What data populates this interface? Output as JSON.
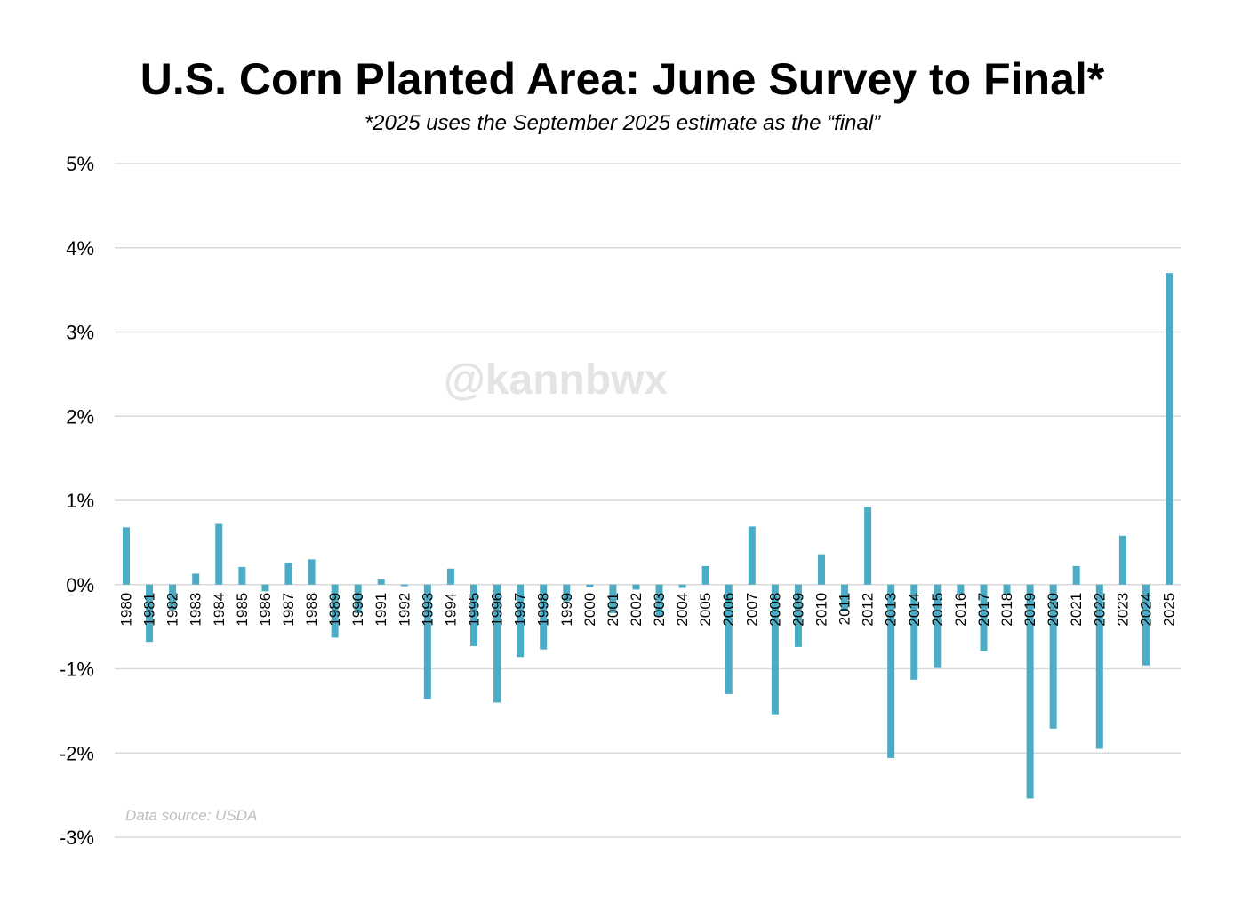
{
  "chart_data": {
    "type": "bar",
    "title": "U.S. Corn Planted Area: June Survey to Final*",
    "subtitle": "*2025 uses the September 2025 estimate as the “final”",
    "watermark": "@kannbwx",
    "source": "Data source: USDA",
    "xlabel": "",
    "ylabel": "",
    "ylim": [
      -3,
      5
    ],
    "yticks": [
      5,
      4,
      3,
      2,
      1,
      0,
      -1,
      -2,
      -3
    ],
    "ytick_labels": [
      "5%",
      "4%",
      "3%",
      "2%",
      "1%",
      "0%",
      "-1%",
      "-2%",
      "-3%"
    ],
    "grid": true,
    "bar_color": "#4bacc6",
    "categories": [
      "1980",
      "1981",
      "1982",
      "1983",
      "1984",
      "1985",
      "1986",
      "1987",
      "1988",
      "1989",
      "1990",
      "1991",
      "1992",
      "1993",
      "1994",
      "1995",
      "1996",
      "1997",
      "1998",
      "1999",
      "2000",
      "2001",
      "2002",
      "2003",
      "2004",
      "2005",
      "2006",
      "2007",
      "2008",
      "2009",
      "2010",
      "2011",
      "2012",
      "2013",
      "2014",
      "2015",
      "2016",
      "2017",
      "2018",
      "2019",
      "2020",
      "2021",
      "2022",
      "2023",
      "2024",
      "2025"
    ],
    "values": [
      0.68,
      -0.68,
      -0.3,
      0.13,
      0.72,
      0.21,
      -0.08,
      0.26,
      0.3,
      -0.63,
      -0.34,
      0.06,
      -0.02,
      -1.36,
      0.19,
      -0.73,
      -1.4,
      -0.86,
      -0.77,
      -0.2,
      -0.03,
      -0.34,
      -0.06,
      -0.38,
      -0.04,
      0.22,
      -1.3,
      0.69,
      -1.54,
      -0.74,
      0.36,
      -0.32,
      0.92,
      -2.06,
      -1.13,
      -0.99,
      -0.12,
      -0.79,
      -0.13,
      -2.54,
      -1.71,
      0.22,
      -1.95,
      0.58,
      -0.96,
      3.7
    ]
  }
}
